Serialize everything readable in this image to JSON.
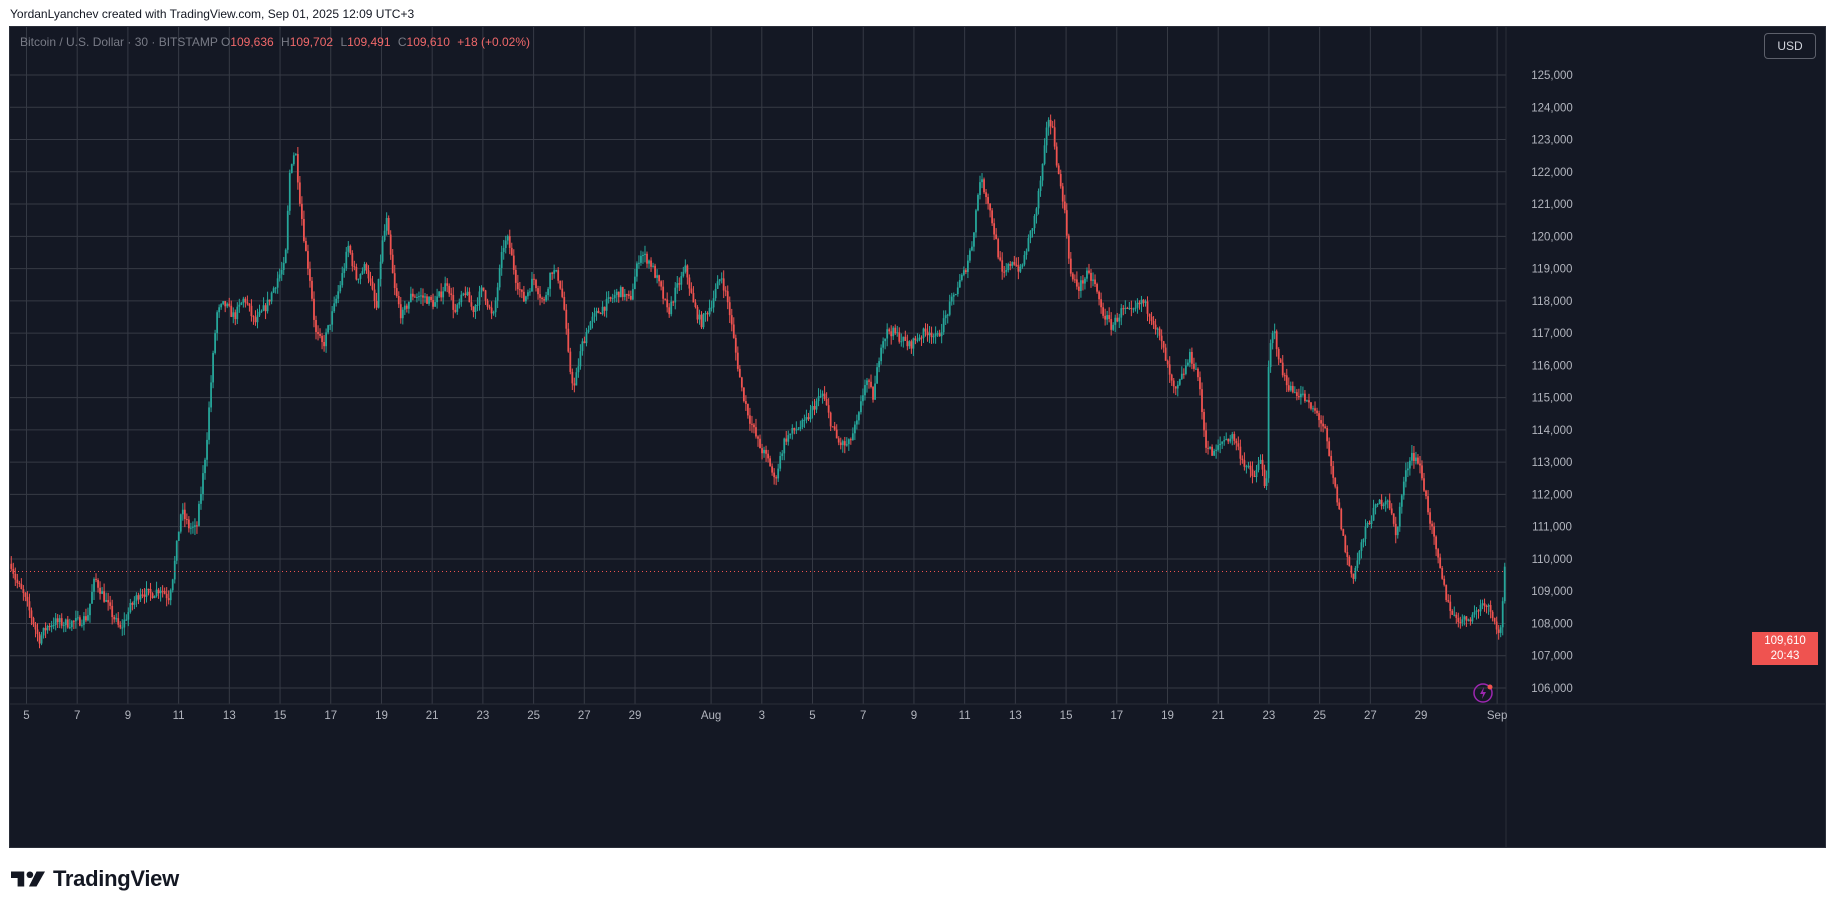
{
  "header": {
    "text": "YordanLyanchev created with TradingView.com, Sep 01, 2025 12:09 UTC+3"
  },
  "symbol_bar": {
    "symbol": "Bitcoin / U.S. Dollar · 30 · BITSTAMP",
    "o_label": "O",
    "o_value": "109,636",
    "h_label": "H",
    "h_value": "109,702",
    "l_label": "L",
    "l_value": "109,491",
    "c_label": "C",
    "c_value": "109,610",
    "change": "+18 (+0.02%)"
  },
  "currency_badge": "USD",
  "last_price": {
    "price": "109,610",
    "countdown": "20:43"
  },
  "logo_text": "TradingView",
  "colors": {
    "background": "#141824",
    "grid": "#363a45",
    "up": "#26a69a",
    "down": "#ef5350",
    "axis_text": "#b2b5be",
    "last_price_line": "#ef5350"
  },
  "chart_data": {
    "type": "candlestick",
    "title": "Bitcoin / U.S. Dollar · 30 · BITSTAMP",
    "interval": "30",
    "exchange": "BITSTAMP",
    "xlabel": "",
    "ylabel": "",
    "y_ticks": [
      "106,000",
      "107,000",
      "108,000",
      "109,000",
      "110,000",
      "111,000",
      "112,000",
      "113,000",
      "114,000",
      "115,000",
      "116,000",
      "117,000",
      "118,000",
      "119,000",
      "120,000",
      "121,000",
      "122,000",
      "123,000",
      "124,000",
      "125,000"
    ],
    "y_tick_values": [
      106000,
      107000,
      108000,
      109000,
      110000,
      111000,
      112000,
      113000,
      114000,
      115000,
      116000,
      117000,
      118000,
      119000,
      120000,
      121000,
      122000,
      123000,
      124000,
      125000
    ],
    "ylim": [
      105500,
      126500
    ],
    "x_ticks": [
      "5",
      "7",
      "9",
      "11",
      "13",
      "15",
      "17",
      "19",
      "21",
      "23",
      "25",
      "27",
      "29",
      "Aug",
      "3",
      "5",
      "7",
      "9",
      "11",
      "13",
      "15",
      "17",
      "19",
      "21",
      "23",
      "25",
      "27",
      "29",
      "Sep"
    ],
    "x_tick_days": [
      4,
      6,
      8,
      10,
      12,
      14,
      16,
      18,
      20,
      22,
      24,
      26,
      28,
      31,
      33,
      35,
      37,
      39,
      41,
      43,
      45,
      47,
      49,
      51,
      53,
      55,
      57,
      59,
      62
    ],
    "x_unit": "days since Jul 1, 2025",
    "xlim": [
      3.35,
      62.35
    ],
    "grid": true,
    "price_series": [
      [
        3.4,
        109850
      ],
      [
        3.6,
        109300
      ],
      [
        3.9,
        108850
      ],
      [
        4.2,
        108200
      ],
      [
        4.5,
        107500
      ],
      [
        4.8,
        107900
      ],
      [
        5.1,
        108050
      ],
      [
        5.5,
        108000
      ],
      [
        6.0,
        108050
      ],
      [
        6.4,
        108200
      ],
      [
        6.7,
        109400
      ],
      [
        7.0,
        108900
      ],
      [
        7.3,
        108400
      ],
      [
        7.7,
        107800
      ],
      [
        8.1,
        108500
      ],
      [
        8.5,
        109000
      ],
      [
        8.9,
        108900
      ],
      [
        9.3,
        109100
      ],
      [
        9.6,
        108800
      ],
      [
        9.8,
        109600
      ],
      [
        10.1,
        111500
      ],
      [
        10.4,
        111000
      ],
      [
        10.7,
        110900
      ],
      [
        10.95,
        112500
      ],
      [
        11.1,
        113600
      ],
      [
        11.3,
        115700
      ],
      [
        11.5,
        117600
      ],
      [
        11.8,
        117900
      ],
      [
        12.2,
        117500
      ],
      [
        12.6,
        118100
      ],
      [
        13.0,
        117300
      ],
      [
        13.5,
        117900
      ],
      [
        13.9,
        118700
      ],
      [
        14.2,
        119100
      ],
      [
        14.4,
        122200
      ],
      [
        14.6,
        122700
      ],
      [
        14.8,
        121000
      ],
      [
        15.0,
        119600
      ],
      [
        15.2,
        118600
      ],
      [
        15.4,
        117000
      ],
      [
        15.7,
        116600
      ],
      [
        16.1,
        117700
      ],
      [
        16.4,
        118600
      ],
      [
        16.7,
        119700
      ],
      [
        17.0,
        118700
      ],
      [
        17.4,
        119100
      ],
      [
        17.8,
        117700
      ],
      [
        18.0,
        119600
      ],
      [
        18.2,
        120500
      ],
      [
        18.5,
        118400
      ],
      [
        18.8,
        117500
      ],
      [
        19.2,
        118200
      ],
      [
        19.7,
        118100
      ],
      [
        20.1,
        117900
      ],
      [
        20.6,
        118600
      ],
      [
        20.9,
        117600
      ],
      [
        21.3,
        118300
      ],
      [
        21.6,
        117700
      ],
      [
        22.0,
        118400
      ],
      [
        22.4,
        117400
      ],
      [
        22.8,
        119700
      ],
      [
        23.0,
        119900
      ],
      [
        23.3,
        118700
      ],
      [
        23.6,
        118000
      ],
      [
        24.0,
        118700
      ],
      [
        24.4,
        117900
      ],
      [
        24.7,
        119000
      ],
      [
        25.0,
        118700
      ],
      [
        25.2,
        117800
      ],
      [
        25.4,
        116000
      ],
      [
        25.6,
        115300
      ],
      [
        25.9,
        116600
      ],
      [
        26.2,
        117300
      ],
      [
        26.6,
        117700
      ],
      [
        27.0,
        118000
      ],
      [
        27.4,
        118300
      ],
      [
        27.8,
        118000
      ],
      [
        28.2,
        119500
      ],
      [
        28.6,
        119200
      ],
      [
        29.0,
        118400
      ],
      [
        29.3,
        117600
      ],
      [
        29.6,
        118300
      ],
      [
        30.0,
        119000
      ],
      [
        30.3,
        117900
      ],
      [
        30.6,
        117300
      ],
      [
        31.0,
        117900
      ],
      [
        31.4,
        118800
      ],
      [
        31.7,
        117800
      ],
      [
        31.95,
        116500
      ],
      [
        32.2,
        115300
      ],
      [
        32.5,
        114400
      ],
      [
        32.9,
        113500
      ],
      [
        33.3,
        113000
      ],
      [
        33.5,
        112400
      ],
      [
        33.9,
        113700
      ],
      [
        34.3,
        114000
      ],
      [
        34.7,
        114200
      ],
      [
        35.1,
        114800
      ],
      [
        35.4,
        115100
      ],
      [
        35.7,
        114300
      ],
      [
        36.0,
        113600
      ],
      [
        36.4,
        113500
      ],
      [
        36.8,
        114300
      ],
      [
        37.1,
        115600
      ],
      [
        37.4,
        115000
      ],
      [
        37.7,
        116700
      ],
      [
        38.0,
        117100
      ],
      [
        38.4,
        116900
      ],
      [
        38.8,
        116600
      ],
      [
        39.2,
        116900
      ],
      [
        39.6,
        117100
      ],
      [
        39.9,
        116800
      ],
      [
        40.3,
        117600
      ],
      [
        40.7,
        118400
      ],
      [
        41.0,
        118900
      ],
      [
        41.3,
        119800
      ],
      [
        41.6,
        121800
      ],
      [
        41.9,
        121200
      ],
      [
        42.2,
        120000
      ],
      [
        42.5,
        118700
      ],
      [
        42.9,
        119300
      ],
      [
        43.2,
        118900
      ],
      [
        43.5,
        119800
      ],
      [
        43.8,
        120700
      ],
      [
        44.1,
        122300
      ],
      [
        44.3,
        123700
      ],
      [
        44.5,
        123200
      ],
      [
        44.7,
        121900
      ],
      [
        44.9,
        121100
      ],
      [
        45.2,
        118700
      ],
      [
        45.5,
        118400
      ],
      [
        45.8,
        118800
      ],
      [
        46.1,
        118600
      ],
      [
        46.4,
        117700
      ],
      [
        46.8,
        117200
      ],
      [
        47.2,
        117700
      ],
      [
        47.6,
        117600
      ],
      [
        48.0,
        118000
      ],
      [
        48.4,
        117500
      ],
      [
        48.8,
        116600
      ],
      [
        49.1,
        115600
      ],
      [
        49.3,
        115100
      ],
      [
        49.6,
        115700
      ],
      [
        49.9,
        116300
      ],
      [
        50.2,
        115700
      ],
      [
        50.5,
        113600
      ],
      [
        50.8,
        113200
      ],
      [
        51.2,
        113700
      ],
      [
        51.6,
        113800
      ],
      [
        52.0,
        113000
      ],
      [
        52.4,
        112500
      ],
      [
        52.7,
        113100
      ],
      [
        52.9,
        112000
      ],
      [
        53.0,
        116400
      ],
      [
        53.2,
        117100
      ],
      [
        53.5,
        115800
      ],
      [
        53.9,
        115200
      ],
      [
        54.3,
        115100
      ],
      [
        54.6,
        114700
      ],
      [
        54.9,
        114500
      ],
      [
        55.2,
        114000
      ],
      [
        55.4,
        113000
      ],
      [
        55.7,
        111800
      ],
      [
        56.0,
        110300
      ],
      [
        56.3,
        109400
      ],
      [
        56.6,
        110300
      ],
      [
        56.9,
        111100
      ],
      [
        57.3,
        111700
      ],
      [
        57.7,
        111900
      ],
      [
        58.0,
        110700
      ],
      [
        58.3,
        112300
      ],
      [
        58.6,
        113300
      ],
      [
        58.9,
        113000
      ],
      [
        59.1,
        112300
      ],
      [
        59.4,
        111000
      ],
      [
        59.7,
        109800
      ],
      [
        60.0,
        108800
      ],
      [
        60.3,
        108200
      ],
      [
        60.7,
        108100
      ],
      [
        61.1,
        108300
      ],
      [
        61.5,
        108700
      ],
      [
        61.9,
        108200
      ],
      [
        62.1,
        107500
      ],
      [
        62.3,
        109610
      ]
    ],
    "last_price": 109610
  }
}
